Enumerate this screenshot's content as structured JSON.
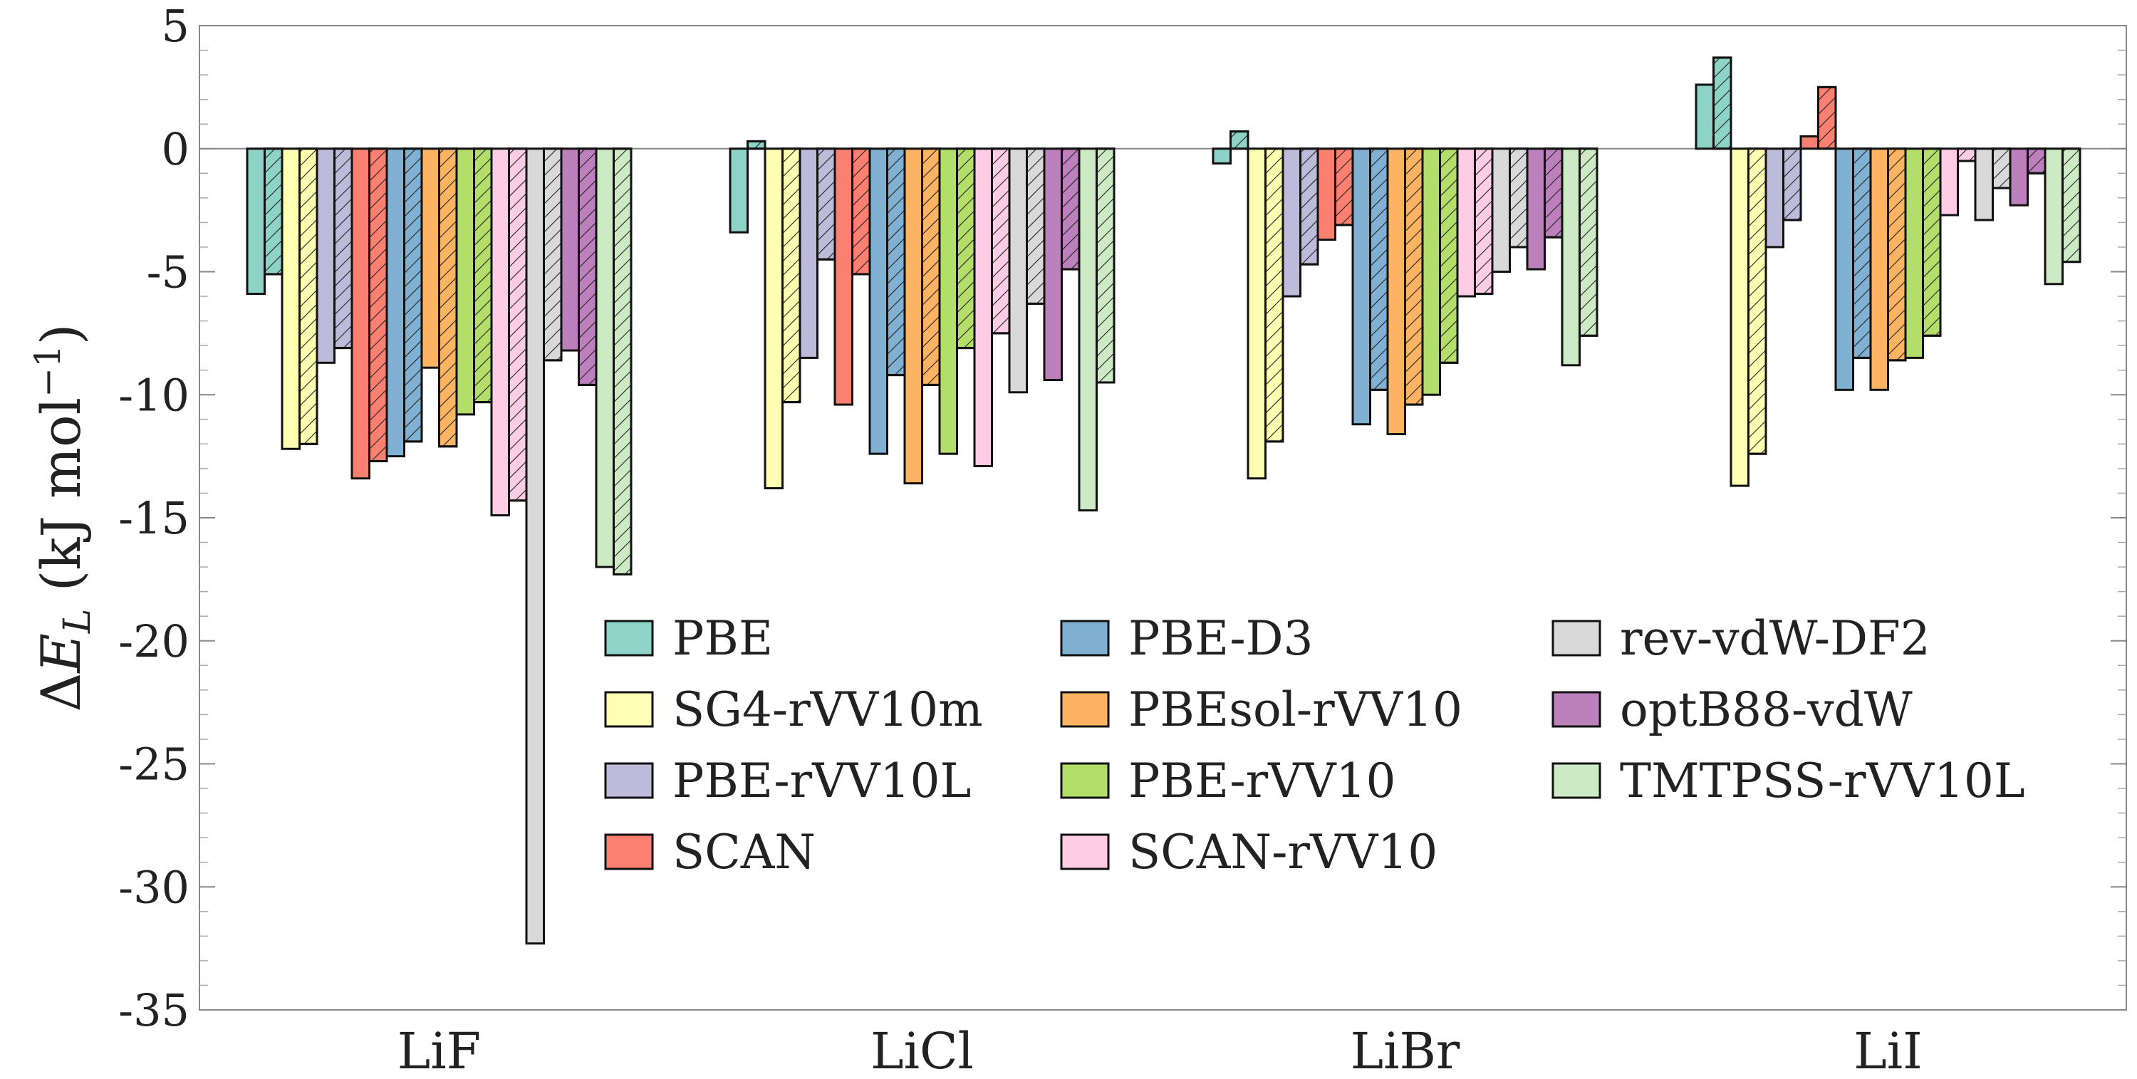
{
  "chart_data": {
    "type": "bar",
    "ylabel_parts": {
      "delta": "Δ",
      "E": "E",
      "sub": "L",
      "units": " (kJ mol",
      "exp": "−1",
      "close": ")"
    },
    "ylim": [
      -35,
      5
    ],
    "yticks": [
      5,
      0,
      -5,
      -10,
      -15,
      -20,
      -25,
      -30,
      -35
    ],
    "ytick_labels": [
      "5",
      "0",
      "-5",
      "-10",
      "-15",
      "-20",
      "-25",
      "-30",
      "-35"
    ],
    "categories": [
      "LiF",
      "LiCl",
      "LiBr",
      "LiI"
    ],
    "legend_placement": "center",
    "bar_pair_note": "",
    "series": [
      {
        "name": "PBE",
        "color": "#8dd3c7",
        "values": [
          [
            -5.9,
            -5.1
          ],
          [
            -3.4,
            0.3
          ],
          [
            -0.6,
            0.7
          ],
          [
            2.6,
            3.7
          ]
        ]
      },
      {
        "name": "SG4-rVV10m",
        "color": "#ffffb3",
        "values": [
          [
            -12.2,
            -12.0
          ],
          [
            -13.8,
            -10.3
          ],
          [
            -13.4,
            -11.9
          ],
          [
            -13.7,
            -12.4
          ]
        ]
      },
      {
        "name": "PBE-rVV10L",
        "color": "#bebada",
        "values": [
          [
            -8.7,
            -8.1
          ],
          [
            -8.5,
            -4.5
          ],
          [
            -6.0,
            -4.7
          ],
          [
            -4.0,
            -2.9
          ]
        ]
      },
      {
        "name": "SCAN",
        "color": "#fb8072",
        "values": [
          [
            -13.4,
            -12.7
          ],
          [
            -10.4,
            -5.1
          ],
          [
            -3.7,
            -3.1
          ],
          [
            0.5,
            2.5
          ]
        ]
      },
      {
        "name": "PBE-D3",
        "color": "#80b1d3",
        "values": [
          [
            -12.5,
            -11.9
          ],
          [
            -12.4,
            -9.2
          ],
          [
            -11.2,
            -9.8
          ],
          [
            -9.8,
            -8.5
          ]
        ]
      },
      {
        "name": "PBEsol-rVV10",
        "color": "#fdb462",
        "values": [
          [
            -8.9,
            -12.1
          ],
          [
            -13.6,
            -9.6
          ],
          [
            -11.6,
            -10.4
          ],
          [
            -9.8,
            -8.6
          ]
        ]
      },
      {
        "name": "PBE-rVV10",
        "color": "#b3de69",
        "values": [
          [
            -10.8,
            -10.3
          ],
          [
            -12.4,
            -8.1
          ],
          [
            -10.0,
            -8.7
          ],
          [
            -8.5,
            -7.6
          ]
        ]
      },
      {
        "name": "SCAN-rVV10",
        "color": "#fccde5",
        "values": [
          [
            -14.9,
            -14.3
          ],
          [
            -12.9,
            -7.5
          ],
          [
            -6.0,
            -5.9
          ],
          [
            -2.7,
            -0.5
          ]
        ]
      },
      {
        "name": "rev-vdW-DF2",
        "color": "#d9d9d9",
        "values": [
          [
            -32.3,
            -8.6
          ],
          [
            -9.9,
            -6.3
          ],
          [
            -5.0,
            -4.0
          ],
          [
            -2.9,
            -1.6
          ]
        ]
      },
      {
        "name": "optB88-vdW",
        "color": "#bc80bd",
        "values": [
          [
            -8.2,
            -9.6
          ],
          [
            -9.4,
            -4.9
          ],
          [
            -4.9,
            -3.6
          ],
          [
            -2.3,
            -1.0
          ]
        ]
      },
      {
        "name": "TMTPSS-rVV10L",
        "color": "#ccebc5",
        "values": [
          [
            -17.0,
            -17.3
          ],
          [
            -14.7,
            -9.5
          ],
          [
            -8.8,
            -7.6
          ],
          [
            -5.5,
            -4.6
          ]
        ]
      }
    ]
  }
}
